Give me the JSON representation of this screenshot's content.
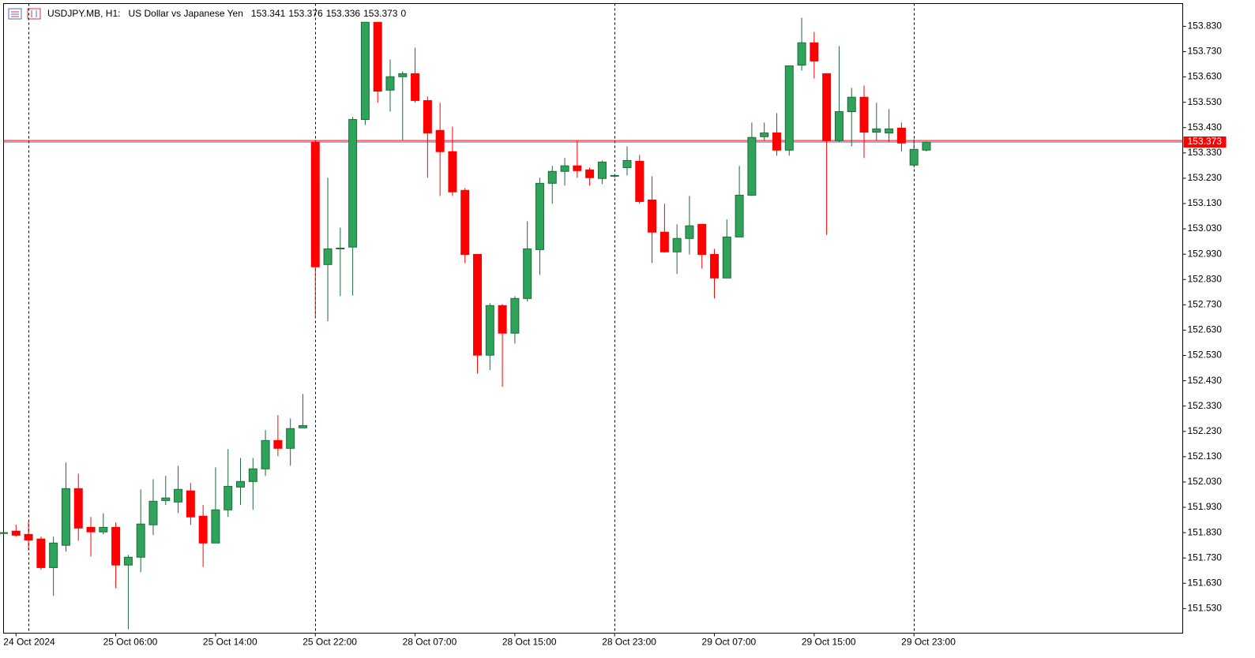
{
  "chart_data": {
    "type": "candlestick",
    "title": "USDJPY.MB, H1:",
    "subtitle": "US Dollar vs Japanese Yen",
    "tick_volume": 0,
    "categories": [
      null,
      "24 Oct 2024",
      null,
      null,
      null,
      null,
      null,
      null,
      null,
      "25 Oct 06:00",
      null,
      null,
      null,
      null,
      null,
      null,
      null,
      "25 Oct 14:00",
      null,
      null,
      null,
      null,
      null,
      null,
      null,
      "25 Oct 22:00",
      null,
      null,
      null,
      null,
      null,
      null,
      null,
      "28 Oct 07:00",
      null,
      null,
      null,
      null,
      null,
      null,
      null,
      "28 Oct 15:00",
      null,
      null,
      null,
      null,
      null,
      null,
      null,
      "28 Oct 23:00",
      null,
      null,
      null,
      null,
      null,
      null,
      null,
      "29 Oct 07:00",
      null,
      null,
      null,
      null,
      null,
      null,
      null,
      "29 Oct 15:00",
      null,
      null,
      null,
      null,
      null,
      null,
      null,
      "29 Oct 23:00",
      null
    ],
    "open": [
      151.829,
      151.836,
      151.823,
      151.805,
      151.692,
      151.78,
      152.004,
      151.851,
      151.833,
      151.851,
      151.702,
      151.733,
      151.861,
      151.957,
      151.951,
      151.995,
      151.895,
      151.789,
      151.92,
      152.01,
      152.032,
      152.082,
      152.194,
      152.163,
      152.244,
      153.372,
      152.889,
      152.951,
      152.958,
      153.462,
      153.846,
      153.578,
      153.631,
      153.643,
      153.537,
      153.419,
      153.335,
      153.182,
      152.929,
      152.531,
      152.727,
      152.618,
      152.755,
      152.948,
      153.21,
      153.257,
      153.279,
      153.263,
      153.229,
      153.238,
      153.272,
      153.297,
      153.144,
      153.017,
      152.939,
      152.992,
      153.048,
      152.929,
      152.836,
      152.998,
      153.163,
      153.394,
      153.409,
      153.341,
      153.677,
      153.765,
      153.643,
      153.378,
      153.493,
      153.55,
      153.412,
      153.409,
      153.428,
      153.282,
      153.341
    ],
    "high": [
      151.832,
      151.861,
      151.873,
      151.814,
      151.814,
      152.107,
      152.063,
      151.892,
      151.907,
      151.87,
      151.742,
      152.001,
      152.041,
      152.054,
      152.094,
      152.026,
      151.939,
      152.088,
      152.16,
      152.125,
      152.125,
      152.235,
      152.294,
      152.281,
      152.378,
      153.378,
      153.232,
      153.035,
      153.472,
      153.846,
      153.846,
      153.699,
      153.652,
      153.746,
      153.553,
      153.528,
      153.434,
      153.191,
      152.929,
      152.736,
      152.733,
      152.764,
      153.06,
      153.232,
      153.279,
      153.31,
      153.378,
      153.272,
      153.3,
      153.247,
      153.356,
      153.322,
      153.238,
      153.129,
      153.048,
      153.16,
      153.048,
      152.951,
      153.067,
      153.279,
      153.45,
      153.45,
      153.487,
      153.674,
      153.864,
      153.808,
      153.643,
      153.752,
      153.587,
      153.596,
      153.528,
      153.503,
      153.45,
      153.384,
      153.376
    ],
    "low": [
      151.826,
      151.814,
      151.761,
      151.683,
      151.58,
      151.755,
      151.798,
      151.736,
      151.823,
      151.611,
      151.449,
      151.674,
      151.82,
      151.939,
      151.907,
      151.861,
      151.695,
      151.789,
      151.892,
      151.939,
      151.92,
      152.054,
      152.132,
      152.094,
      152.244,
      152.677,
      152.665,
      152.764,
      152.767,
      153.44,
      153.528,
      153.493,
      153.378,
      153.528,
      153.232,
      153.16,
      153.16,
      152.895,
      152.459,
      152.472,
      152.406,
      152.577,
      152.743,
      152.848,
      153.129,
      153.201,
      153.232,
      153.201,
      153.207,
      153.232,
      153.241,
      153.129,
      152.895,
      152.936,
      152.852,
      152.929,
      152.873,
      152.755,
      152.836,
      152.998,
      153.16,
      153.378,
      153.319,
      153.319,
      153.655,
      153.624,
      153.007,
      153.372,
      153.356,
      153.31,
      153.378,
      153.372,
      153.335,
      153.272,
      153.336
    ],
    "close": [
      151.83,
      151.82,
      151.801,
      151.692,
      151.789,
      152.004,
      151.848,
      151.833,
      151.851,
      151.702,
      151.733,
      151.864,
      151.954,
      151.967,
      152.001,
      151.892,
      151.789,
      151.92,
      152.013,
      152.032,
      152.082,
      152.194,
      152.163,
      152.241,
      152.253,
      152.88,
      152.951,
      152.954,
      153.462,
      153.846,
      153.574,
      153.631,
      153.643,
      153.537,
      153.409,
      153.335,
      153.176,
      152.929,
      152.531,
      152.727,
      152.618,
      152.755,
      152.951,
      153.21,
      153.257,
      153.279,
      153.26,
      153.232,
      153.294,
      153.241,
      153.3,
      153.138,
      153.017,
      152.939,
      152.992,
      153.042,
      152.929,
      152.836,
      152.998,
      153.163,
      153.391,
      153.409,
      153.341,
      153.674,
      153.765,
      153.693,
      153.378,
      153.493,
      153.55,
      153.412,
      153.425,
      153.425,
      153.369,
      153.344,
      153.373
    ],
    "up_color": "#2fa35a",
    "down_color": "#ff0000",
    "bid_color": "#4a5fc1",
    "ask_color": "#ff0000",
    "ask": 153.379,
    "ylim": [
      151.433,
      153.92
    ],
    "yticks": [
      {
        "value": 151.53,
        "label": "151.530"
      },
      {
        "value": 151.63,
        "label": "151.630"
      },
      {
        "value": 151.73,
        "label": "151.730"
      },
      {
        "value": 151.83,
        "label": "151.830"
      },
      {
        "value": 151.93,
        "label": "151.930"
      },
      {
        "value": 152.03,
        "label": "152.030"
      },
      {
        "value": 152.13,
        "label": "152.130"
      },
      {
        "value": 152.23,
        "label": "152.230"
      },
      {
        "value": 152.33,
        "label": "152.330"
      },
      {
        "value": 152.43,
        "label": "152.430"
      },
      {
        "value": 152.53,
        "label": "152.530"
      },
      {
        "value": 152.63,
        "label": "152.630"
      },
      {
        "value": 152.73,
        "label": "152.730"
      },
      {
        "value": 152.83,
        "label": "152.830"
      },
      {
        "value": 152.93,
        "label": "152.930"
      },
      {
        "value": 153.03,
        "label": "153.030"
      },
      {
        "value": 153.13,
        "label": "153.130"
      },
      {
        "value": 153.23,
        "label": "153.230"
      },
      {
        "value": 153.33,
        "label": "153.330"
      },
      {
        "value": 153.43,
        "label": "153.430"
      },
      {
        "value": 153.53,
        "label": "153.530"
      },
      {
        "value": 153.63,
        "label": "153.630"
      },
      {
        "value": 153.73,
        "label": "153.730"
      },
      {
        "value": 153.83,
        "label": "153.830"
      }
    ]
  }
}
